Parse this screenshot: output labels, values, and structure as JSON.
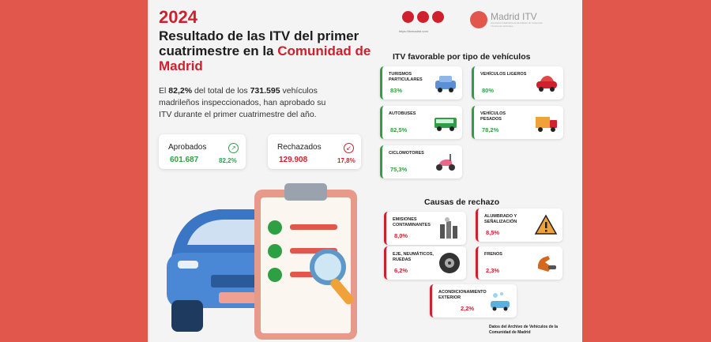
{
  "header": {
    "year": "2024",
    "title_plain": "Resultado de las ITV del primer cuatrimestre en la ",
    "title_highlight": "Comunidad de Madrid"
  },
  "intro": {
    "before": "El ",
    "pct": "82,2%",
    "mid": " del total de los ",
    "total": "731.595",
    "after": " vehículos madrileños inspeccionados, han aprobado su ITV durante el primer cuatrimestre del año."
  },
  "social": {
    "url": "https://itvmadrid.com"
  },
  "logo": {
    "name": "Madrid ITV",
    "tagline": "Asociación Madrileña de Entidades de Inspección Técnica de Vehículos"
  },
  "stats": {
    "approved": {
      "label": "Aprobados",
      "value": "601.687",
      "pct": "82,2%",
      "icon": "trend-up-icon"
    },
    "rejected": {
      "label": "Rechazados",
      "value": "129.908",
      "pct": "17,8%",
      "icon": "trend-down-icon"
    }
  },
  "favorable": {
    "heading": "ITV favorable por tipo de vehículos",
    "items": [
      {
        "label": "TURISMOS PARTICULARES",
        "value": "83%",
        "icon": "car-icon"
      },
      {
        "label": "VEHÍCULOS LIGEROS",
        "value": "80%",
        "icon": "light-vehicle-icon"
      },
      {
        "label": "AUTOBUSES",
        "value": "82,5%",
        "icon": "bus-icon"
      },
      {
        "label": "VEHÍCULOS PESADOS",
        "value": "78,2%",
        "icon": "truck-icon"
      },
      {
        "label": "CICLOMOTORES",
        "value": "75,3%",
        "icon": "moped-icon"
      }
    ]
  },
  "rejection": {
    "heading": "Causas de rechazo",
    "items": [
      {
        "label": "EMISIONES CONTAMINANTES",
        "value": "8,0%",
        "icon": "emissions-icon"
      },
      {
        "label": "ALUMBRADO Y SEÑALIZACIÓN",
        "value": "8,5%",
        "icon": "warning-triangle-icon"
      },
      {
        "label": "EJE, NEUMÁTICOS, RUEDAS",
        "value": "6,2%",
        "icon": "tire-icon"
      },
      {
        "label": "FRENOS",
        "value": "2,3%",
        "icon": "brake-icon"
      },
      {
        "label": "ACONDICIONAMIENTO EXTERIOR",
        "value": "2,2%",
        "icon": "car-wash-icon"
      }
    ]
  },
  "source": "Datos del Archivo de Vehículos de la Comunidad de Madrid",
  "colors": {
    "brand_red": "#d0202e",
    "approved_green": "#2ea043",
    "frame": "#e2574c"
  }
}
